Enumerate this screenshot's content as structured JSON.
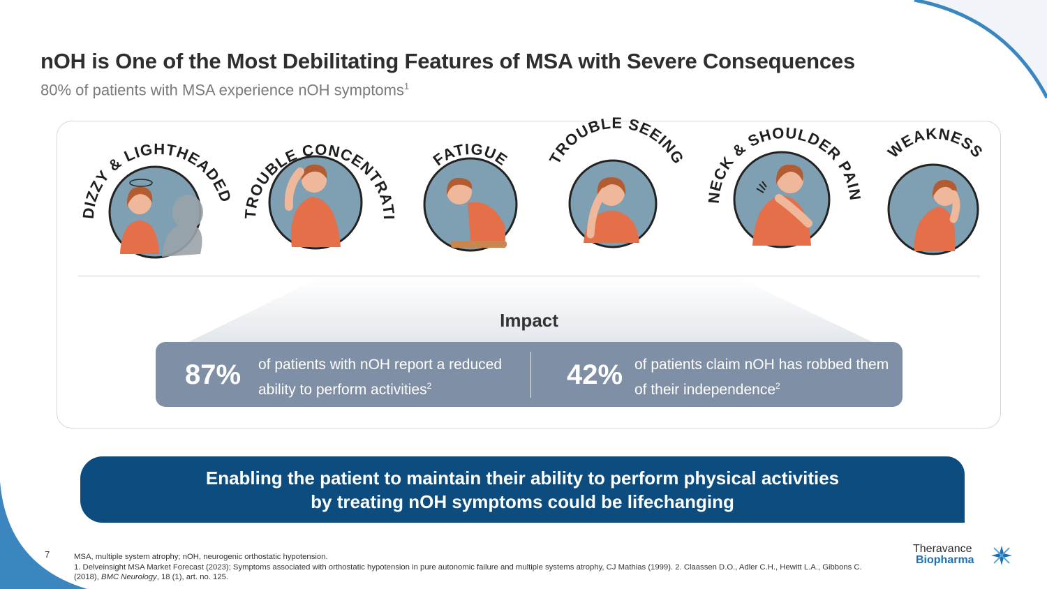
{
  "header": {
    "title": "nOH is One of the Most Debilitating Features of MSA with Severe Consequences",
    "subtitle": "80% of patients with MSA experience nOH symptoms",
    "subtitle_ref": "1"
  },
  "symptoms": [
    {
      "label": "DIZZY & LIGHTHEADED",
      "icon": "dizzy-person-icon"
    },
    {
      "label": "TROUBLE CONCENTRATING",
      "icon": "head-in-hand-icon"
    },
    {
      "label": "FATIGUE",
      "icon": "tired-person-icon"
    },
    {
      "label": "TROUBLE SEEING",
      "icon": "rubbing-eyes-icon"
    },
    {
      "label": "NECK & SHOULDER PAIN",
      "icon": "shoulder-pain-icon"
    },
    {
      "label": "WEAKNESS",
      "icon": "weak-person-icon"
    }
  ],
  "impact": {
    "label": "Impact",
    "stats": [
      {
        "value": "87%",
        "text": "of patients with nOH report a reduced ability to perform activities",
        "ref": "2"
      },
      {
        "value": "42%",
        "text": "of patients claim nOH has robbed them of their independence",
        "ref": "2"
      }
    ]
  },
  "banner": {
    "line1": "Enabling the patient to maintain their ability to perform physical activities",
    "line2": "by treating nOH symptoms could be lifechanging"
  },
  "footer": {
    "page_number": "7",
    "abbreviations": "MSA, multiple system atrophy; nOH, neurogenic orthostatic hypotension.",
    "references_main": "1. Delveinsight MSA Market Forecast (2023); Symptoms associated with orthostatic hypotension in pure autonomic failure and multiple systems atrophy, CJ Mathias (1999). 2. Claassen D.O., Adler C.H., Hewitt L.A., Gibbons C. (2018), ",
    "references_journal": "BMC Neurology",
    "references_tail": ", 18 (1), art. no. 125."
  },
  "logo": {
    "line1": "Theravance",
    "line2": "Biopharma"
  },
  "colors": {
    "title": "#2e2e2e",
    "stats_bar": "#7f8fa6",
    "banner": "#0c4c7e",
    "deco_blue": "#3b86bf",
    "icon_circle": "#7f9fb2",
    "shirt": "#e46f48"
  }
}
